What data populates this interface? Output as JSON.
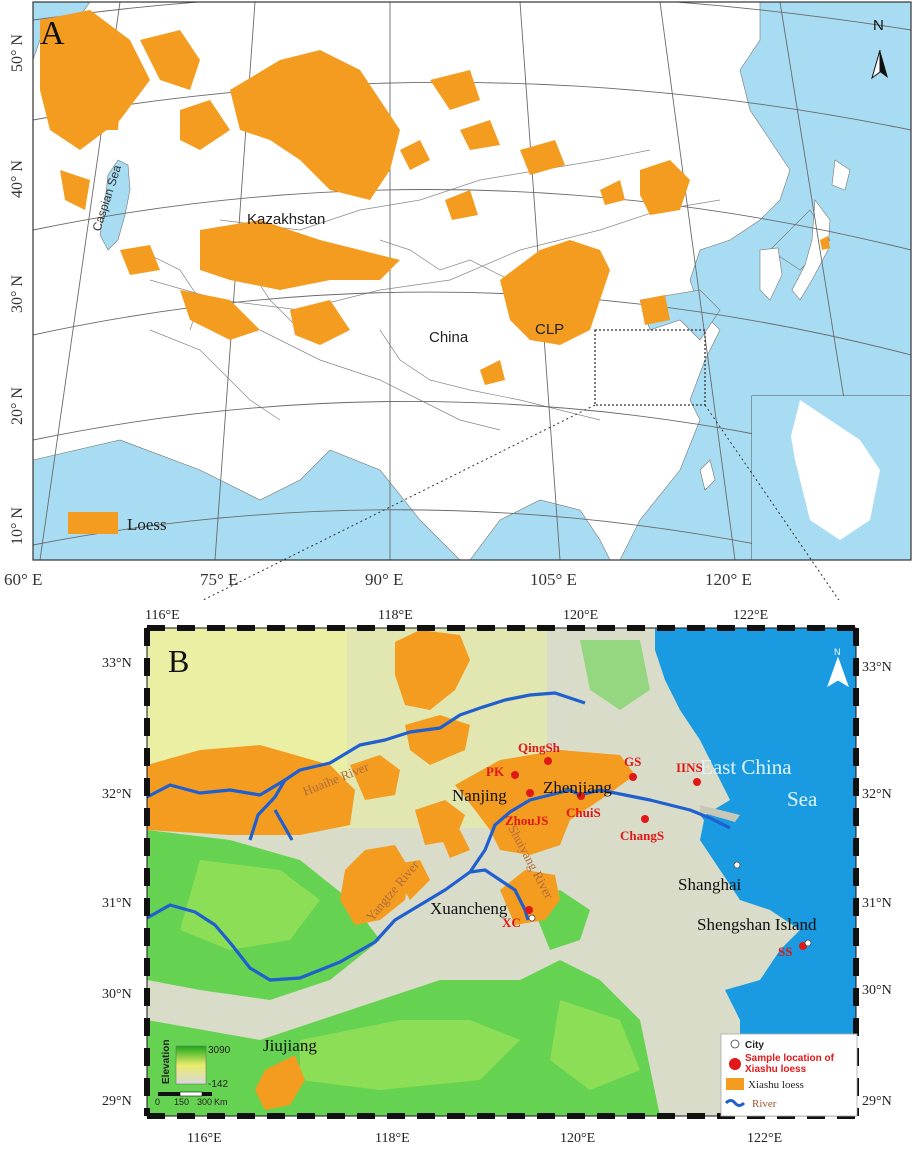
{
  "panel_a": {
    "letter": "A",
    "lat_labels": [
      "50° N",
      "40° N",
      "30° N",
      "20° N",
      "10° N"
    ],
    "lon_labels": [
      "60° E",
      "75° E",
      "90° E",
      "105° E",
      "120° E"
    ],
    "place_labels": {
      "caspian": "Caspian Sea",
      "kazakhstan": "Kazakhstan",
      "china": "China",
      "clp": "CLP"
    },
    "legend": {
      "loess": "Loess"
    },
    "north": "N"
  },
  "panel_b": {
    "letter": "B",
    "lon_top": [
      "116°E",
      "118°E",
      "120°E",
      "122°E"
    ],
    "lon_bottom": [
      "116°E",
      "118°E",
      "120°E",
      "122°E"
    ],
    "lat_left": [
      "33°N",
      "32°N",
      "31°N",
      "30°N",
      "29°N"
    ],
    "lat_right": [
      "33°N",
      "32°N",
      "31°N",
      "30°N",
      "29°N"
    ],
    "north": "N",
    "rivers": {
      "huaihe": "Huaihe River",
      "yangtze": "Yangtze River",
      "shuiyang": "Shuiyang River"
    },
    "sea": {
      "line1": "East  China",
      "line2": "Sea"
    },
    "cities": {
      "nanjing": "Nanjing",
      "zhenjiang": "Zhenjiang",
      "xuancheng": "Xuancheng",
      "shanghai": "Shanghai",
      "shengshan": "Shengshan Island",
      "jiujiang": "Jiujiang"
    },
    "sites": {
      "qingsh": "QingSh",
      "pk": "PK",
      "gs": "GS",
      "iins": "IINS",
      "zhoujs": "ZhouJS",
      "chuis": "ChuiS",
      "changs": "ChangS",
      "xc": "XC",
      "ss": "SS"
    },
    "elevation": {
      "title": "Elevation",
      "max": "3090",
      "min": "-142",
      "scale_labels": [
        "0",
        "150",
        "300"
      ],
      "unit": "Km"
    },
    "legend": {
      "city": "City",
      "sample_line1": "Sample location of",
      "sample_line2": "Xiashu loess",
      "xiashu": "Xiashu loess",
      "river": "River"
    }
  }
}
